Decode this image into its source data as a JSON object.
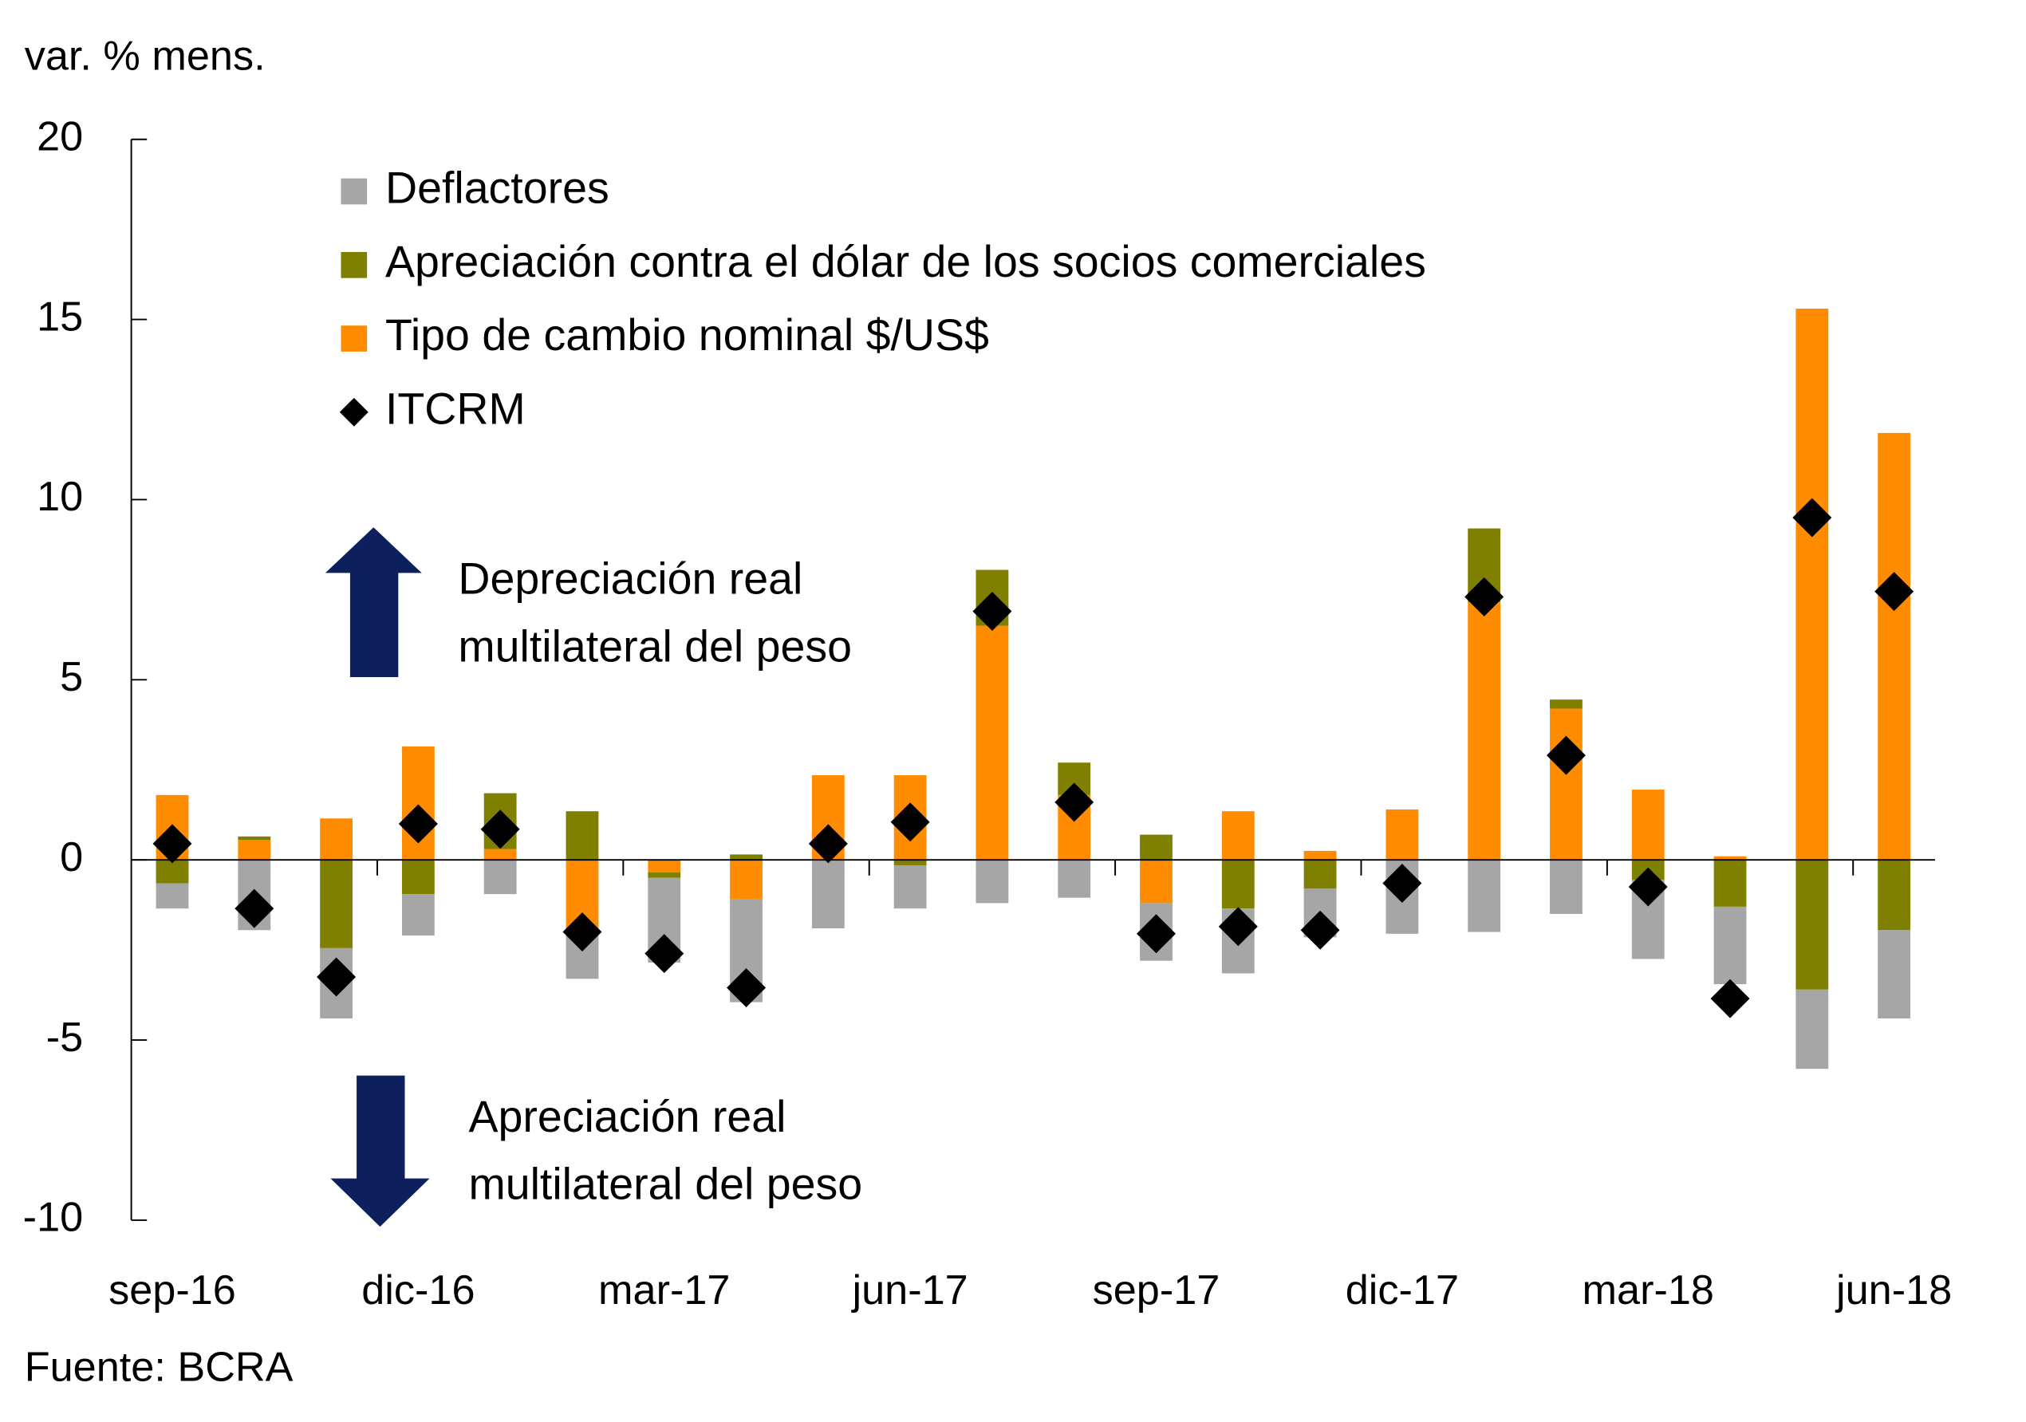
{
  "chart_data": {
    "type": "bar",
    "stacked": true,
    "y_axis_label": "var. % mens.",
    "source": "Fuente: BCRA",
    "annotations": [
      [
        "Depreciación real",
        "multilateral del peso"
      ],
      [
        "Apreciación real",
        "multilateral del peso"
      ]
    ],
    "categories": [
      "sep-16",
      null,
      null,
      "dic-16",
      null,
      null,
      "mar-17",
      null,
      null,
      "jun-17",
      null,
      null,
      "sep-17",
      null,
      null,
      "dic-17",
      null,
      null,
      "mar-18",
      null,
      null,
      "jun-18"
    ],
    "series": [
      {
        "name": "Deflactores",
        "type": "bar",
        "color": "#a6a6a6",
        "values": [
          -0.7,
          -1.95,
          -1.95,
          -1.15,
          -0.95,
          -1.35,
          -2.35,
          -2.85,
          -1.9,
          -1.2,
          -1.2,
          -1.05,
          -1.6,
          -1.8,
          -1.35,
          -2.05,
          -2.0,
          -1.5,
          -2.2,
          -2.15,
          -2.2,
          -2.45
        ]
      },
      {
        "name": "Apreciación contra el dólar de los socios comerciales",
        "type": "bar",
        "color": "#7f7f00",
        "values": [
          -0.65,
          0.1,
          -2.45,
          -0.95,
          1.55,
          1.35,
          -0.15,
          0.15,
          0,
          -0.15,
          1.55,
          0.9,
          0.7,
          -1.35,
          -0.8,
          0,
          2.05,
          0.25,
          -0.55,
          -1.3,
          -3.6,
          -1.95
        ]
      },
      {
        "name": "Tipo de cambio nominal $/US$",
        "type": "bar",
        "color": "#ff8c00",
        "values": [
          1.8,
          0.55,
          1.15,
          3.15,
          0.3,
          -1.95,
          -0.35,
          -1.1,
          2.35,
          2.35,
          6.5,
          1.8,
          -1.2,
          1.35,
          0.25,
          1.4,
          7.15,
          4.2,
          1.95,
          0.1,
          15.3,
          11.85
        ]
      },
      {
        "name": "ITCRM",
        "type": "scatter",
        "color": "#000000",
        "values": [
          0.45,
          -1.35,
          -3.25,
          1.0,
          0.85,
          -2.0,
          -2.6,
          -3.55,
          0.45,
          1.05,
          6.9,
          1.6,
          -2.05,
          -1.85,
          -1.95,
          -0.65,
          7.3,
          2.9,
          -0.75,
          -3.85,
          9.5,
          7.45
        ]
      }
    ],
    "ylim": [
      -10,
      20
    ],
    "yticks": [
      20,
      15,
      10,
      5,
      0,
      -5,
      -10
    ],
    "grid": false
  }
}
